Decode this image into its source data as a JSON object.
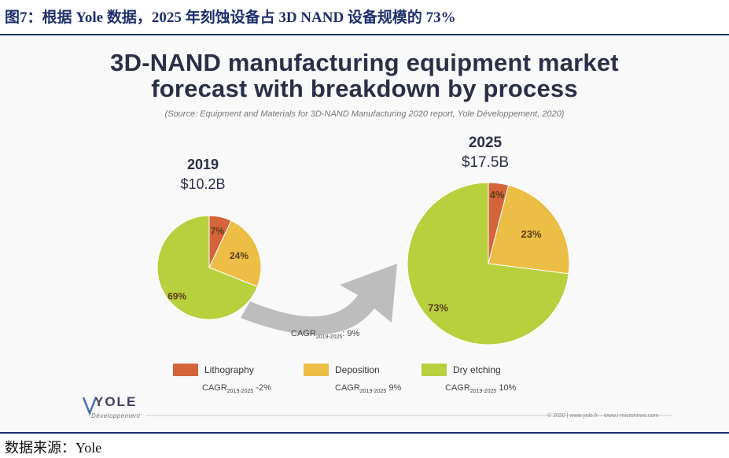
{
  "caption": "图7：根据 Yole 数据，2025 年刻蚀设备占 3D NAND 设备规模的 73%",
  "title_line1": "3D-NAND manufacturing equipment market",
  "title_line2": "forecast with breakdown by process",
  "source": "(Source: Equipment and Materials for 3D-NAND Manufacturing 2020 report, Yole Développement, 2020)",
  "chart_data": {
    "type": "pie",
    "charts": [
      {
        "year": "2019",
        "total": "$10.2B",
        "slices": [
          {
            "name": "Lithography",
            "value": 7,
            "label": "7%"
          },
          {
            "name": "Deposition",
            "value": 24,
            "label": "24%"
          },
          {
            "name": "Dry etching",
            "value": 69,
            "label": "69%"
          }
        ]
      },
      {
        "year": "2025",
        "total": "$17.5B",
        "slices": [
          {
            "name": "Lithography",
            "value": 4,
            "label": "4%"
          },
          {
            "name": "Deposition",
            "value": 23,
            "label": "23%"
          },
          {
            "name": "Dry etching",
            "value": 73,
            "label": "73%"
          }
        ]
      }
    ],
    "cagr_total": {
      "prefix": "CAGR",
      "sub": "2019-2025",
      "value": ": 9%"
    },
    "legend": [
      {
        "name": "Lithography",
        "color": "#d4643a",
        "cagr_prefix": "CAGR",
        "cagr_sub": "2019-2025",
        "cagr_value": " -2%"
      },
      {
        "name": "Deposition",
        "color": "#ecbe45",
        "cagr_prefix": "CAGR",
        "cagr_sub": "2019-2025",
        "cagr_value": " 9%"
      },
      {
        "name": "Dry etching",
        "color": "#b8cf3e",
        "cagr_prefix": "CAGR",
        "cagr_sub": "2019-2025",
        "cagr_value": " 10%"
      }
    ]
  },
  "logo_text": "YOLE",
  "logo_sub": "Développement",
  "copyright": "© 2020 | www.yole.fr – www.i-micronews.com",
  "data_source": "数据来源：Yole"
}
